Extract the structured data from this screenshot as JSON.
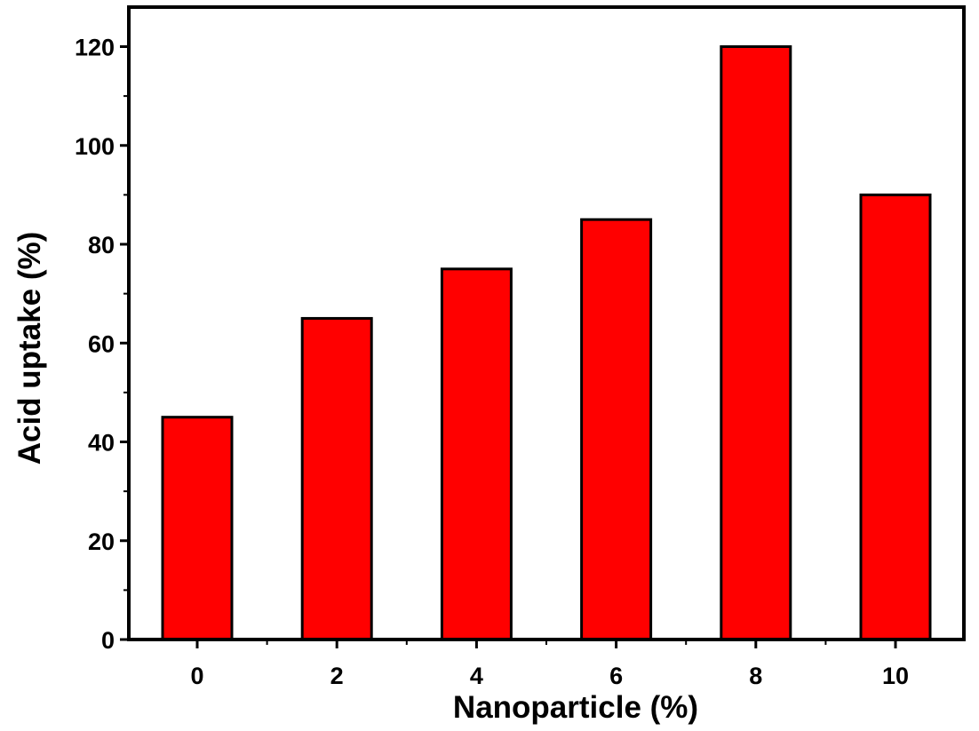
{
  "chart_data": {
    "type": "bar",
    "categories": [
      "0",
      "2",
      "4",
      "6",
      "8",
      "10"
    ],
    "values": [
      45,
      65,
      75,
      85,
      120,
      90
    ],
    "title": "",
    "xlabel": "Nanoparticle (%)",
    "ylabel": "Acid uptake (%)",
    "ylim": [
      0,
      128
    ],
    "yticks": [
      0,
      20,
      40,
      60,
      80,
      100,
      120
    ],
    "grid": false,
    "legend": "none",
    "bar_color": "#ff0000",
    "bar_edge_color": "#000000"
  }
}
